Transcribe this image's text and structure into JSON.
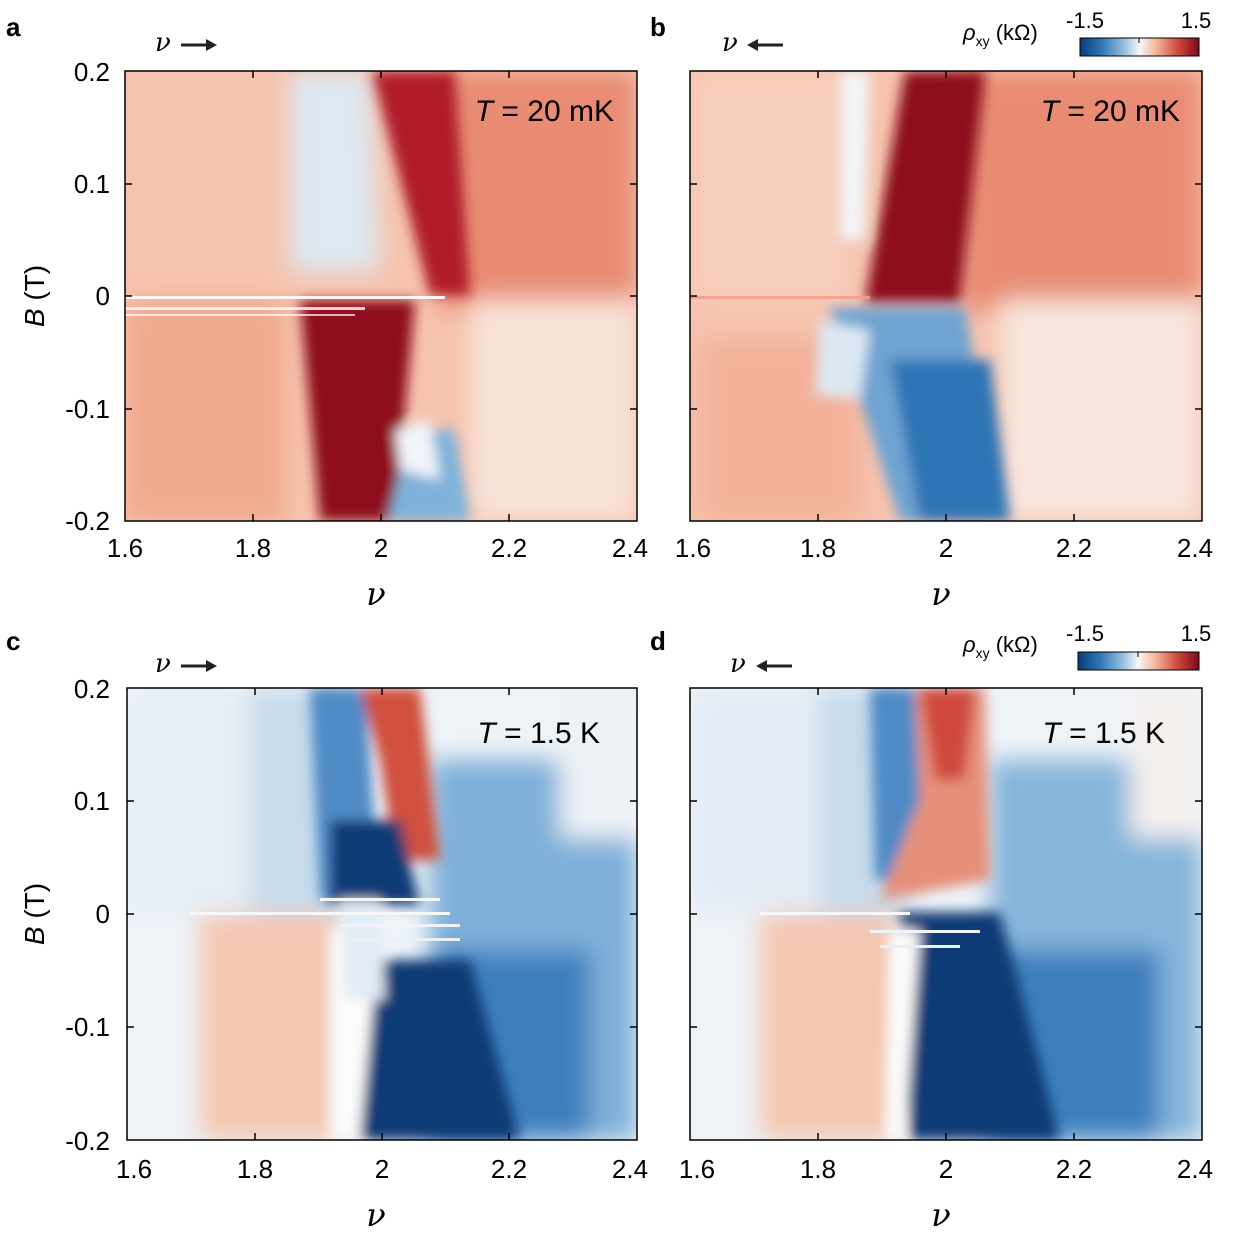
{
  "chart_data": [
    {
      "panel": "a",
      "type": "heatmap",
      "sweep": "nu increasing",
      "arrow_label": "ν",
      "arrow_dir": "right",
      "annotation": {
        "var": "T",
        "text": " = 20 mK"
      },
      "xlabel": "ν",
      "ylabel_var": "B",
      "ylabel_unit": " (T)",
      "xlim": [
        1.6,
        2.4
      ],
      "ylim": [
        -0.2,
        0.2
      ],
      "xticks": [
        "1.6",
        "1.8",
        "2",
        "2.2",
        "2.4"
      ],
      "yticks": [
        "-0.2",
        "-0.1",
        "0",
        "0.1",
        "0.2"
      ],
      "z_range": [
        -1.5,
        1.5
      ],
      "features": [
        {
          "nu": [
            1.6,
            2.4
          ],
          "B": [
            -0.2,
            0.2
          ],
          "rho_xy": 0.3
        },
        {
          "nu": [
            1.62,
            1.86
          ],
          "B": [
            -0.2,
            0.0
          ],
          "rho_xy": 0.45
        },
        {
          "nu": [
            1.86,
            2.06
          ],
          "B": [
            0.02,
            0.2
          ],
          "rho_xy": -0.35
        },
        {
          "nu": [
            1.93,
            2.05
          ],
          "B": [
            -0.2,
            0.0
          ],
          "rho_xy": 1.5
        },
        {
          "nu": [
            1.98,
            2.2
          ],
          "B": [
            0.0,
            0.2
          ],
          "rho_xy": 1.35
        },
        {
          "nu": [
            2.02,
            2.12
          ],
          "B": [
            -0.2,
            -0.08
          ],
          "rho_xy": -0.55
        },
        {
          "nu": [
            2.2,
            2.4
          ],
          "B": [
            0.0,
            0.2
          ],
          "rho_xy": 0.75
        },
        {
          "nu": [
            2.1,
            2.4
          ],
          "B": [
            -0.2,
            0.0
          ],
          "rho_xy": 0.15
        }
      ]
    },
    {
      "panel": "b",
      "type": "heatmap",
      "sweep": "nu decreasing",
      "arrow_label": "ν",
      "arrow_dir": "left",
      "annotation": {
        "var": "T",
        "text": " = 20 mK"
      },
      "xlabel": "ν",
      "ylabel_var": "",
      "ylabel_unit": "",
      "xlim": [
        1.6,
        2.4
      ],
      "ylim": [
        -0.2,
        0.2
      ],
      "xticks": [
        "1.6",
        "1.8",
        "2",
        "2.2",
        "2.4"
      ],
      "yticks": [],
      "z_range": [
        -1.5,
        1.5
      ],
      "features": [
        {
          "nu": [
            1.6,
            2.4
          ],
          "B": [
            -0.2,
            0.2
          ],
          "rho_xy": 0.3
        },
        {
          "nu": [
            1.6,
            1.84
          ],
          "B": [
            0.0,
            0.2
          ],
          "rho_xy": 0.4
        },
        {
          "nu": [
            1.84,
            1.88
          ],
          "B": [
            0.05,
            0.2
          ],
          "rho_xy": 0.0
        },
        {
          "nu": [
            1.92,
            2.04
          ],
          "B": [
            0.0,
            0.2
          ],
          "rho_xy": 1.5
        },
        {
          "nu": [
            1.86,
            2.08
          ],
          "B": [
            -0.2,
            -0.01
          ],
          "rho_xy": -0.9
        },
        {
          "nu": [
            1.66,
            1.86
          ],
          "B": [
            -0.2,
            -0.05
          ],
          "rho_xy": 0.55
        },
        {
          "nu": [
            2.04,
            2.4
          ],
          "B": [
            0.0,
            0.2
          ],
          "rho_xy": 0.75
        }
      ]
    },
    {
      "panel": "c",
      "type": "heatmap",
      "sweep": "nu increasing",
      "arrow_label": "ν",
      "arrow_dir": "right",
      "annotation": {
        "var": "T",
        "text": " = 1.5 K"
      },
      "xlabel": "ν",
      "ylabel_var": "B",
      "ylabel_unit": " (T)",
      "xlim": [
        1.6,
        2.4
      ],
      "ylim": [
        -0.2,
        0.2
      ],
      "xticks": [
        "1.6",
        "1.8",
        "2",
        "2.2",
        "2.4"
      ],
      "yticks": [
        "-0.2",
        "-0.1",
        "0",
        "0.1",
        "0.2"
      ],
      "z_range": [
        -1.5,
        1.5
      ],
      "features": [
        {
          "nu": [
            1.6,
            1.9
          ],
          "B": [
            0.0,
            0.2
          ],
          "rho_xy": -0.25
        },
        {
          "nu": [
            1.7,
            1.95
          ],
          "B": [
            -0.2,
            0.0
          ],
          "rho_xy": 0.4
        },
        {
          "nu": [
            1.9,
            2.0
          ],
          "B": [
            -0.2,
            0.2
          ],
          "rho_xy": -1.0
        },
        {
          "nu": [
            2.0,
            2.08
          ],
          "B": [
            0.05,
            0.2
          ],
          "rho_xy": 0.9
        },
        {
          "nu": [
            1.96,
            2.15
          ],
          "B": [
            -0.2,
            0.0
          ],
          "rho_xy": -1.5
        },
        {
          "nu": [
            2.1,
            2.4
          ],
          "B": [
            -0.2,
            0.2
          ],
          "rho_xy": -0.6
        }
      ]
    },
    {
      "panel": "d",
      "type": "heatmap",
      "sweep": "nu decreasing",
      "arrow_label": "ν",
      "arrow_dir": "left",
      "annotation": {
        "var": "T",
        "text": " = 1.5 K"
      },
      "xlabel": "ν",
      "ylabel_var": "",
      "ylabel_unit": "",
      "xlim": [
        1.6,
        2.4
      ],
      "ylim": [
        -0.2,
        0.2
      ],
      "xticks": [
        "1.6",
        "1.8",
        "2",
        "2.2",
        "2.4"
      ],
      "yticks": [],
      "z_range": [
        -1.5,
        1.5
      ],
      "features": [
        {
          "nu": [
            1.6,
            1.88
          ],
          "B": [
            0.0,
            0.2
          ],
          "rho_xy": -0.25
        },
        {
          "nu": [
            1.7,
            1.9
          ],
          "B": [
            -0.2,
            0.0
          ],
          "rho_xy": 0.4
        },
        {
          "nu": [
            1.9,
            2.0
          ],
          "B": [
            0.02,
            0.2
          ],
          "rho_xy": 0.8
        },
        {
          "nu": [
            1.95,
            2.2
          ],
          "B": [
            -0.2,
            0.0
          ],
          "rho_xy": -1.5
        },
        {
          "nu": [
            2.05,
            2.4
          ],
          "B": [
            -0.2,
            0.2
          ],
          "rho_xy": -0.6
        }
      ]
    }
  ],
  "colorbar": {
    "label_var": "ρ",
    "label_sub": "xy",
    "label_unit": " (kΩ)",
    "min_label": "-1.5",
    "max_label": "1.5",
    "colors": [
      "#0a3b78",
      "#2f75b6",
      "#9cc3e1",
      "#f7f7f7",
      "#f4b69a",
      "#cf4a3d",
      "#7a0a1c"
    ]
  }
}
